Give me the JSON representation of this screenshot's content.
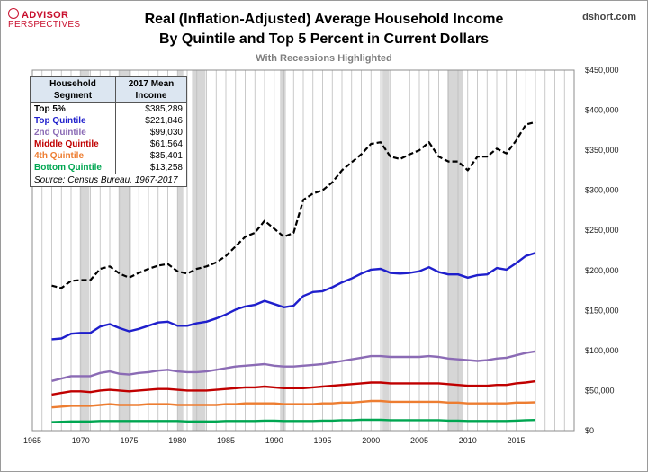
{
  "branding": {
    "logo_top": "ADVISOR",
    "logo_bottom": "PERSPECTIVES",
    "site": "dshort.com"
  },
  "chart_data": {
    "type": "line",
    "title_line1": "Real (Inflation-Adjusted) Average Household Income",
    "title_line2": "By Quintile and Top 5 Percent in Current Dollars",
    "subtitle": "With Recessions Highlighted",
    "xlabel": "",
    "ylabel": "",
    "xlim": [
      1965,
      2021
    ],
    "ylim": [
      0,
      450000
    ],
    "x_ticks": [
      1965,
      1970,
      1975,
      1980,
      1985,
      1990,
      1995,
      2000,
      2005,
      2010,
      2015
    ],
    "y_ticks": [
      0,
      50000,
      100000,
      150000,
      200000,
      250000,
      300000,
      350000,
      400000,
      450000
    ],
    "y_tick_labels": [
      "$0",
      "$50,000",
      "$100,000",
      "$150,000",
      "$200,000",
      "$250,000",
      "$300,000",
      "$350,000",
      "$400,000",
      "$450,000"
    ],
    "y_axis_side": "right",
    "grid": "vertical",
    "recessions": [
      [
        1969.9,
        1970.9
      ],
      [
        1973.9,
        1975.2
      ],
      [
        1980.0,
        1980.6
      ],
      [
        1981.5,
        1982.9
      ],
      [
        1990.6,
        1991.2
      ],
      [
        2001.2,
        2001.9
      ],
      [
        2007.9,
        2009.5
      ]
    ],
    "x": [
      1967,
      1968,
      1969,
      1970,
      1971,
      1972,
      1973,
      1974,
      1975,
      1976,
      1977,
      1978,
      1979,
      1980,
      1981,
      1982,
      1983,
      1984,
      1985,
      1986,
      1987,
      1988,
      1989,
      1990,
      1991,
      1992,
      1993,
      1994,
      1995,
      1996,
      1997,
      1998,
      1999,
      2000,
      2001,
      2002,
      2003,
      2004,
      2005,
      2006,
      2007,
      2008,
      2009,
      2010,
      2011,
      2012,
      2013,
      2014,
      2015,
      2016,
      2017
    ],
    "series": [
      {
        "name": "Top 5%",
        "color": "#000000",
        "style": "dashed",
        "values": [
          181000,
          178000,
          187000,
          188000,
          188000,
          202000,
          205000,
          196000,
          191000,
          197000,
          202000,
          206000,
          208000,
          199000,
          196000,
          202000,
          205000,
          210000,
          218000,
          230000,
          242000,
          247000,
          262000,
          252000,
          242000,
          247000,
          288000,
          296000,
          300000,
          310000,
          325000,
          335000,
          345000,
          358000,
          360000,
          342000,
          339000,
          345000,
          350000,
          360000,
          342000,
          336000,
          336000,
          325000,
          342000,
          342000,
          352000,
          346000,
          362000,
          382000,
          385289
        ]
      },
      {
        "name": "Top Quintile",
        "color": "#1f1fcc",
        "style": "solid",
        "values": [
          114000,
          115000,
          121000,
          122000,
          122000,
          130000,
          133000,
          128000,
          124000,
          127000,
          131000,
          135000,
          136000,
          131000,
          131000,
          134000,
          136000,
          140000,
          145000,
          151000,
          155000,
          157000,
          162000,
          158000,
          154000,
          156000,
          168000,
          173000,
          174000,
          179000,
          185000,
          190000,
          196000,
          201000,
          202000,
          197000,
          196000,
          197000,
          199000,
          204000,
          198000,
          195000,
          195000,
          191000,
          194000,
          195000,
          203000,
          201000,
          209000,
          218000,
          221846
        ]
      },
      {
        "name": "2nd Quintile",
        "color": "#8b6bb5",
        "style": "solid",
        "values": [
          62000,
          65000,
          68000,
          68000,
          68000,
          72000,
          74000,
          71000,
          70000,
          72000,
          73000,
          75000,
          76000,
          74000,
          73000,
          73000,
          74000,
          76000,
          78000,
          80000,
          81000,
          82000,
          83000,
          81000,
          80000,
          80000,
          81000,
          82000,
          83000,
          85000,
          87000,
          89000,
          91000,
          93000,
          93000,
          92000,
          92000,
          92000,
          92000,
          93000,
          92000,
          90000,
          89000,
          88000,
          87000,
          88000,
          90000,
          91000,
          94000,
          97000,
          99030
        ]
      },
      {
        "name": "Middle Quintile",
        "color": "#c00000",
        "style": "solid",
        "values": [
          45000,
          47000,
          49000,
          49000,
          48000,
          50000,
          51000,
          50000,
          49000,
          50000,
          51000,
          52000,
          52000,
          51000,
          50000,
          50000,
          50000,
          51000,
          52000,
          53000,
          54000,
          54000,
          55000,
          54000,
          53000,
          53000,
          53000,
          54000,
          55000,
          56000,
          57000,
          58000,
          59000,
          60000,
          60000,
          59000,
          59000,
          59000,
          59000,
          59000,
          59000,
          58000,
          57000,
          56000,
          56000,
          56000,
          57000,
          57000,
          59000,
          60000,
          61564
        ]
      },
      {
        "name": "4th Quintile",
        "color": "#ed7d31",
        "style": "solid",
        "values": [
          29000,
          30000,
          31000,
          31000,
          31000,
          32000,
          33000,
          32000,
          32000,
          32000,
          33000,
          33000,
          33000,
          32000,
          32000,
          32000,
          32000,
          32000,
          33000,
          33000,
          34000,
          34000,
          34000,
          34000,
          33000,
          33000,
          33000,
          33000,
          34000,
          34000,
          35000,
          35000,
          36000,
          37000,
          37000,
          36000,
          36000,
          36000,
          36000,
          36000,
          36000,
          35000,
          35000,
          34000,
          34000,
          34000,
          34000,
          34000,
          35000,
          35000,
          35401
        ]
      },
      {
        "name": "Bottom Quintile",
        "color": "#00a651",
        "style": "solid",
        "values": [
          10500,
          11000,
          11500,
          11500,
          11500,
          12000,
          12000,
          12000,
          12000,
          12000,
          12000,
          12000,
          12000,
          12000,
          11500,
          11500,
          11500,
          11500,
          12000,
          12000,
          12000,
          12000,
          12500,
          12500,
          12000,
          12000,
          12000,
          12000,
          12500,
          12500,
          13000,
          13000,
          13500,
          13500,
          13500,
          13000,
          13000,
          13000,
          13000,
          13000,
          13000,
          12500,
          12500,
          12000,
          12000,
          12000,
          12000,
          12000,
          12500,
          13000,
          13258
        ]
      }
    ]
  },
  "legend_table": {
    "header_col1": "Household Segment",
    "header_col2": "2017 Mean Income",
    "rows": [
      {
        "label": "Top 5%",
        "value": "$385,289",
        "color": "#000000"
      },
      {
        "label": "Top Quintile",
        "value": "$221,846",
        "color": "#1f1fcc"
      },
      {
        "label": "2nd Quintile",
        "value": "$99,030",
        "color": "#8b6bb5"
      },
      {
        "label": "Middle Quintile",
        "value": "$61,564",
        "color": "#c00000"
      },
      {
        "label": "4th Quintile",
        "value": "$35,401",
        "color": "#ed7d31"
      },
      {
        "label": "Bottom Quintile",
        "value": "$13,258",
        "color": "#00a651"
      }
    ],
    "source": "Source: Census Bureau, 1967-2017"
  }
}
